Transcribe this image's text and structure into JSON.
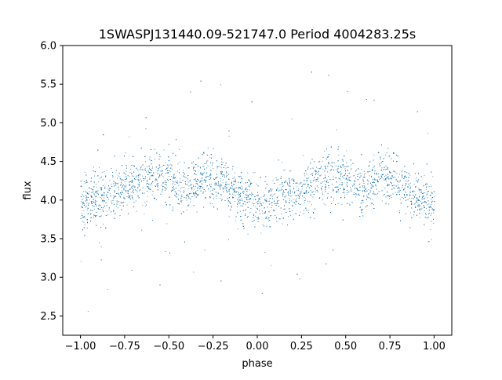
{
  "chart_data": {
    "type": "scatter",
    "title": "1SWASPJ131440.09-521747.0 Period 4004283.25s",
    "xlabel": "phase",
    "ylabel": "flux",
    "xlim": [
      -1.1,
      1.1
    ],
    "ylim": [
      2.25,
      6.0
    ],
    "xticks": [
      -1.0,
      -0.75,
      -0.5,
      -0.25,
      0.0,
      0.25,
      0.5,
      0.75,
      1.0
    ],
    "xtick_labels": [
      "−1.00",
      "−0.75",
      "−0.50",
      "−0.25",
      "0.00",
      "0.25",
      "0.50",
      "0.75",
      "1.00"
    ],
    "yticks": [
      2.5,
      3.0,
      3.5,
      4.0,
      4.5,
      5.0,
      5.5,
      6.0
    ],
    "ytick_labels": [
      "2.5",
      "3.0",
      "3.5",
      "4.0",
      "4.5",
      "5.0",
      "5.5",
      "6.0"
    ],
    "grid": false,
    "legend": "none",
    "point_color": "#1f77b4",
    "series": [
      {
        "x": [
          -1.0,
          -0.9,
          -0.8,
          -0.7,
          -0.6,
          -0.5,
          -0.4,
          -0.3,
          -0.2,
          -0.1,
          0.0,
          0.1,
          0.2,
          0.3,
          0.4,
          0.5,
          0.6,
          0.7,
          0.8,
          0.9,
          1.0
        ],
        "y": [
          3.95,
          4.05,
          4.1,
          4.2,
          4.35,
          4.3,
          4.15,
          4.3,
          4.25,
          4.05,
          3.95,
          4.0,
          4.1,
          4.2,
          4.35,
          4.3,
          4.15,
          4.3,
          4.25,
          4.05,
          3.95
        ]
      }
    ]
  }
}
